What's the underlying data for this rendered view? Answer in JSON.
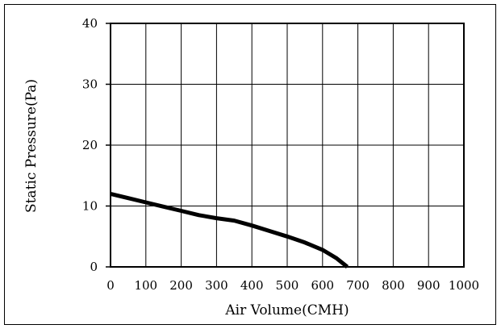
{
  "chart_data": {
    "type": "line",
    "title": "",
    "xlabel": "Air Volume(CMH)",
    "ylabel": "Static Pressure(Pa)",
    "xlim": [
      0,
      1000
    ],
    "ylim": [
      0,
      40
    ],
    "x_ticks": [
      0,
      100,
      200,
      300,
      400,
      500,
      600,
      700,
      800,
      900,
      1000
    ],
    "y_ticks": [
      0,
      10,
      20,
      30,
      40
    ],
    "grid": true,
    "legend": "none",
    "series": [
      {
        "color": "#000000",
        "points": [
          [
            0,
            12.0
          ],
          [
            50,
            11.3
          ],
          [
            100,
            10.6
          ],
          [
            150,
            9.9
          ],
          [
            200,
            9.2
          ],
          [
            250,
            8.5
          ],
          [
            300,
            8.0
          ],
          [
            350,
            7.6
          ],
          [
            400,
            6.8
          ],
          [
            450,
            5.9
          ],
          [
            500,
            5.0
          ],
          [
            550,
            4.0
          ],
          [
            600,
            2.8
          ],
          [
            640,
            1.4
          ],
          [
            670,
            0.0
          ]
        ]
      }
    ]
  }
}
